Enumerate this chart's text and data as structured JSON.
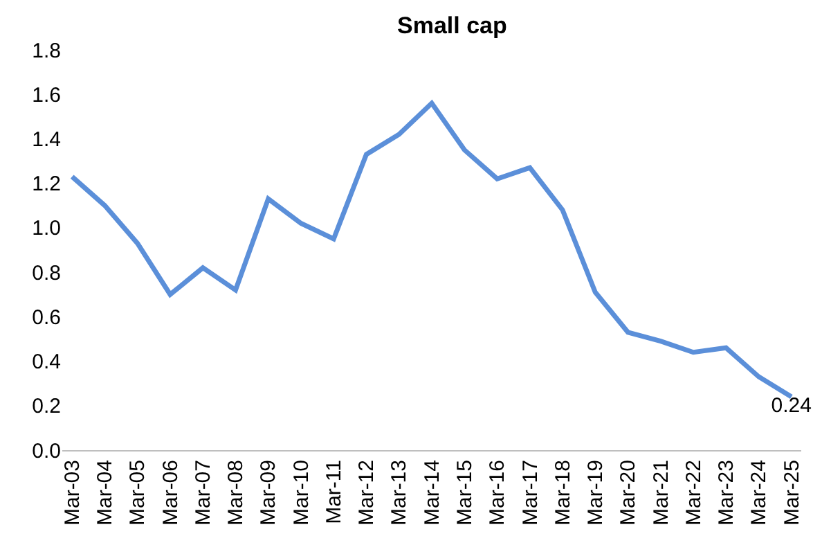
{
  "chart_data": {
    "type": "line",
    "title": "Small cap",
    "categories": [
      "Mar-03",
      "Mar-04",
      "Mar-05",
      "Mar-06",
      "Mar-07",
      "Mar-08",
      "Mar-09",
      "Mar-10",
      "Mar-11",
      "Mar-12",
      "Mar-13",
      "Mar-14",
      "Mar-15",
      "Mar-16",
      "Mar-17",
      "Mar-18",
      "Mar-19",
      "Mar-20",
      "Mar-21",
      "Mar-22",
      "Mar-23",
      "Mar-24",
      "Mar-25"
    ],
    "series": [
      {
        "color": "#5b8fd9",
        "values": [
          1.23,
          1.1,
          0.93,
          0.7,
          0.82,
          0.72,
          1.13,
          1.02,
          0.95,
          1.33,
          1.42,
          1.56,
          1.35,
          1.22,
          1.27,
          1.08,
          0.71,
          0.53,
          0.49,
          0.44,
          0.46,
          0.33,
          0.24
        ],
        "value_labels": [
          null,
          null,
          null,
          null,
          null,
          null,
          null,
          null,
          null,
          null,
          null,
          null,
          null,
          null,
          null,
          null,
          null,
          null,
          null,
          null,
          null,
          null,
          "0.24"
        ]
      }
    ],
    "ylim": [
      0,
      1.8
    ],
    "yticks": [
      {
        "value": 0,
        "label": "0.0"
      },
      0.2,
      0.4,
      0.6,
      0.8,
      {
        "value": 1,
        "label": "1.0"
      },
      1.2,
      1.4,
      1.6,
      1.8
    ],
    "marker": "none",
    "line_style": "solid"
  }
}
